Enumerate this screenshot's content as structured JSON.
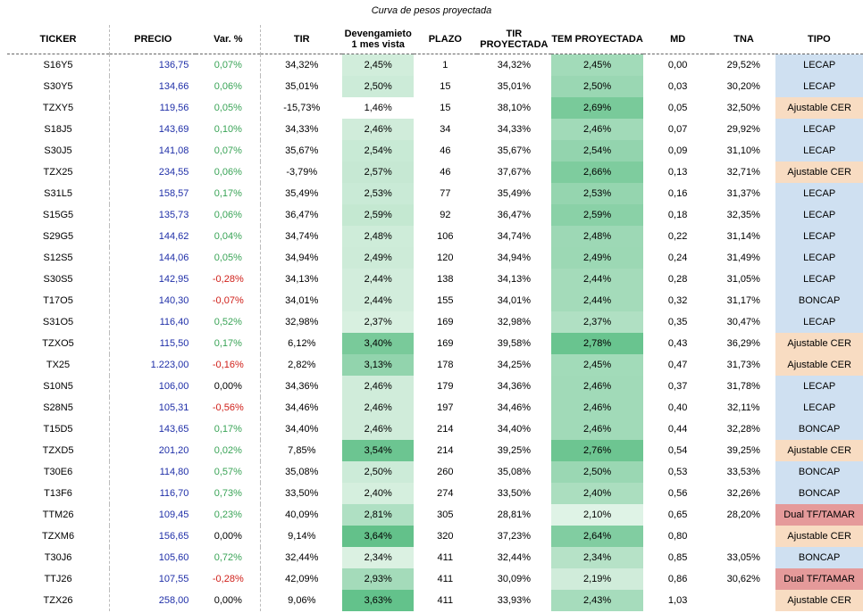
{
  "caption": "Curva de pesos proyectada",
  "headers": {
    "ticker": "TICKER",
    "precio": "PRECIO",
    "var": "Var. %",
    "tir": "TIR",
    "dev1": "Devengamieto",
    "dev2": "1 mes vista",
    "plazo": "PLAZO",
    "tirp1": "TIR",
    "tirp2": "PROYECTADA",
    "tem": "TEM PROYECTADA",
    "md": "MD",
    "tna": "TNA",
    "tipo": "TIPO"
  },
  "colors": {
    "LECAP": "#cfe0f1",
    "Ajustable CER": "#f8dcc2",
    "BONCAP": "#cfe0f1",
    "Dual TF/TAMAR": "#e59a9a",
    "green_low": "#e8f6ec",
    "green_high": "#5dbf86"
  },
  "rows": [
    {
      "ticker": "S16Y5",
      "precio": "136,75",
      "var": "0,07%",
      "tir": "34,32%",
      "dev": "2,45%",
      "plazo": "1",
      "tirp": "34,32%",
      "tem": "2,45%",
      "md": "0,00",
      "tna": "29,52%",
      "tipo": "LECAP"
    },
    {
      "ticker": "S30Y5",
      "precio": "134,66",
      "var": "0,06%",
      "tir": "35,01%",
      "dev": "2,50%",
      "plazo": "15",
      "tirp": "35,01%",
      "tem": "2,50%",
      "md": "0,03",
      "tna": "30,20%",
      "tipo": "LECAP"
    },
    {
      "ticker": "TZXY5",
      "precio": "119,56",
      "var": "0,05%",
      "tir": "-15,73%",
      "dev": "1,46%",
      "plazo": "15",
      "tirp": "38,10%",
      "tem": "2,69%",
      "md": "0,05",
      "tna": "32,50%",
      "tipo": "Ajustable CER"
    },
    {
      "ticker": "S18J5",
      "precio": "143,69",
      "var": "0,10%",
      "tir": "34,33%",
      "dev": "2,46%",
      "plazo": "34",
      "tirp": "34,33%",
      "tem": "2,46%",
      "md": "0,07",
      "tna": "29,92%",
      "tipo": "LECAP"
    },
    {
      "ticker": "S30J5",
      "precio": "141,08",
      "var": "0,07%",
      "tir": "35,67%",
      "dev": "2,54%",
      "plazo": "46",
      "tirp": "35,67%",
      "tem": "2,54%",
      "md": "0,09",
      "tna": "31,10%",
      "tipo": "LECAP"
    },
    {
      "ticker": "TZX25",
      "precio": "234,55",
      "var": "0,06%",
      "tir": "-3,79%",
      "dev": "2,57%",
      "plazo": "46",
      "tirp": "37,67%",
      "tem": "2,66%",
      "md": "0,13",
      "tna": "32,71%",
      "tipo": "Ajustable CER"
    },
    {
      "ticker": "S31L5",
      "precio": "158,57",
      "var": "0,17%",
      "tir": "35,49%",
      "dev": "2,53%",
      "plazo": "77",
      "tirp": "35,49%",
      "tem": "2,53%",
      "md": "0,16",
      "tna": "31,37%",
      "tipo": "LECAP"
    },
    {
      "ticker": "S15G5",
      "precio": "135,73",
      "var": "0,06%",
      "tir": "36,47%",
      "dev": "2,59%",
      "plazo": "92",
      "tirp": "36,47%",
      "tem": "2,59%",
      "md": "0,18",
      "tna": "32,35%",
      "tipo": "LECAP"
    },
    {
      "ticker": "S29G5",
      "precio": "144,62",
      "var": "0,04%",
      "tir": "34,74%",
      "dev": "2,48%",
      "plazo": "106",
      "tirp": "34,74%",
      "tem": "2,48%",
      "md": "0,22",
      "tna": "31,14%",
      "tipo": "LECAP"
    },
    {
      "ticker": "S12S5",
      "precio": "144,06",
      "var": "0,05%",
      "tir": "34,94%",
      "dev": "2,49%",
      "plazo": "120",
      "tirp": "34,94%",
      "tem": "2,49%",
      "md": "0,24",
      "tna": "31,49%",
      "tipo": "LECAP"
    },
    {
      "ticker": "S30S5",
      "precio": "142,95",
      "var": "-0,28%",
      "tir": "34,13%",
      "dev": "2,44%",
      "plazo": "138",
      "tirp": "34,13%",
      "tem": "2,44%",
      "md": "0,28",
      "tna": "31,05%",
      "tipo": "LECAP"
    },
    {
      "ticker": "T17O5",
      "precio": "140,30",
      "var": "-0,07%",
      "tir": "34,01%",
      "dev": "2,44%",
      "plazo": "155",
      "tirp": "34,01%",
      "tem": "2,44%",
      "md": "0,32",
      "tna": "31,17%",
      "tipo": "BONCAP"
    },
    {
      "ticker": "S31O5",
      "precio": "116,40",
      "var": "0,52%",
      "tir": "32,98%",
      "dev": "2,37%",
      "plazo": "169",
      "tirp": "32,98%",
      "tem": "2,37%",
      "md": "0,35",
      "tna": "30,47%",
      "tipo": "LECAP"
    },
    {
      "ticker": "TZXO5",
      "precio": "115,50",
      "var": "0,17%",
      "tir": "6,12%",
      "dev": "3,40%",
      "plazo": "169",
      "tirp": "39,58%",
      "tem": "2,78%",
      "md": "0,43",
      "tna": "36,29%",
      "tipo": "Ajustable CER"
    },
    {
      "ticker": "TX25",
      "precio": "1.223,00",
      "var": "-0,16%",
      "tir": "2,82%",
      "dev": "3,13%",
      "plazo": "178",
      "tirp": "34,25%",
      "tem": "2,45%",
      "md": "0,47",
      "tna": "31,73%",
      "tipo": "Ajustable CER"
    },
    {
      "ticker": "S10N5",
      "precio": "106,00",
      "var": "0,00%",
      "tir": "34,36%",
      "dev": "2,46%",
      "plazo": "179",
      "tirp": "34,36%",
      "tem": "2,46%",
      "md": "0,37",
      "tna": "31,78%",
      "tipo": "LECAP"
    },
    {
      "ticker": "S28N5",
      "precio": "105,31",
      "var": "-0,56%",
      "tir": "34,46%",
      "dev": "2,46%",
      "plazo": "197",
      "tirp": "34,46%",
      "tem": "2,46%",
      "md": "0,40",
      "tna": "32,11%",
      "tipo": "LECAP"
    },
    {
      "ticker": "T15D5",
      "precio": "143,65",
      "var": "0,17%",
      "tir": "34,40%",
      "dev": "2,46%",
      "plazo": "214",
      "tirp": "34,40%",
      "tem": "2,46%",
      "md": "0,44",
      "tna": "32,28%",
      "tipo": "BONCAP"
    },
    {
      "ticker": "TZXD5",
      "precio": "201,20",
      "var": "0,02%",
      "tir": "7,85%",
      "dev": "3,54%",
      "plazo": "214",
      "tirp": "39,25%",
      "tem": "2,76%",
      "md": "0,54",
      "tna": "39,25%",
      "tipo": "Ajustable CER"
    },
    {
      "ticker": "T30E6",
      "precio": "114,80",
      "var": "0,57%",
      "tir": "35,08%",
      "dev": "2,50%",
      "plazo": "260",
      "tirp": "35,08%",
      "tem": "2,50%",
      "md": "0,53",
      "tna": "33,53%",
      "tipo": "BONCAP"
    },
    {
      "ticker": "T13F6",
      "precio": "116,70",
      "var": "0,73%",
      "tir": "33,50%",
      "dev": "2,40%",
      "plazo": "274",
      "tirp": "33,50%",
      "tem": "2,40%",
      "md": "0,56",
      "tna": "32,26%",
      "tipo": "BONCAP"
    },
    {
      "ticker": "TTM26",
      "precio": "109,45",
      "var": "0,23%",
      "tir": "40,09%",
      "dev": "2,81%",
      "plazo": "305",
      "tirp": "28,81%",
      "tem": "2,10%",
      "md": "0,65",
      "tna": "28,20%",
      "tipo": "Dual TF/TAMAR"
    },
    {
      "ticker": "TZXM6",
      "precio": "156,65",
      "var": "0,00%",
      "tir": "9,14%",
      "dev": "3,64%",
      "plazo": "320",
      "tirp": "37,23%",
      "tem": "2,64%",
      "md": "0,80",
      "tna": "",
      "tipo": "Ajustable CER"
    },
    {
      "ticker": "T30J6",
      "precio": "105,60",
      "var": "0,72%",
      "tir": "32,44%",
      "dev": "2,34%",
      "plazo": "411",
      "tirp": "32,44%",
      "tem": "2,34%",
      "md": "0,85",
      "tna": "33,05%",
      "tipo": "BONCAP"
    },
    {
      "ticker": "TTJ26",
      "precio": "107,55",
      "var": "-0,28%",
      "tir": "42,09%",
      "dev": "2,93%",
      "plazo": "411",
      "tirp": "30,09%",
      "tem": "2,19%",
      "md": "0,86",
      "tna": "30,62%",
      "tipo": "Dual TF/TAMAR"
    },
    {
      "ticker": "TZX26",
      "precio": "258,00",
      "var": "0,00%",
      "tir": "9,06%",
      "dev": "3,63%",
      "plazo": "411",
      "tirp": "33,93%",
      "tem": "2,43%",
      "md": "1,03",
      "tna": "",
      "tipo": "Ajustable CER"
    }
  ]
}
